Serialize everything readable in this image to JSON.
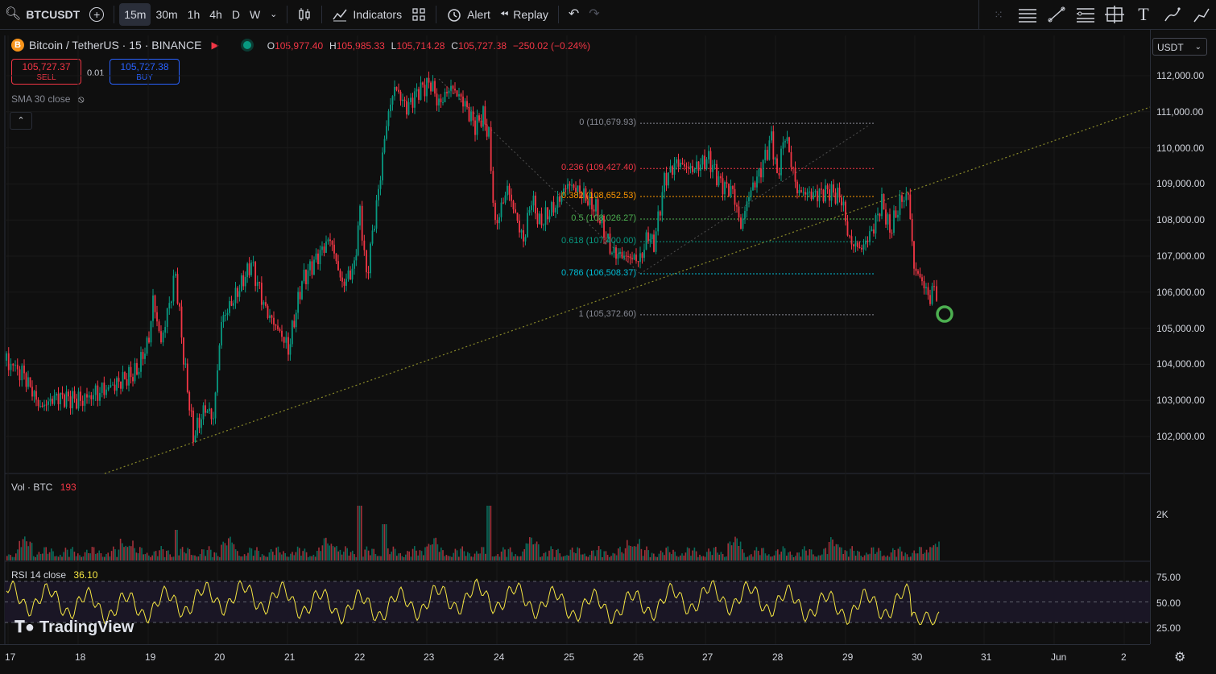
{
  "toolbar": {
    "symbol": "BTCUSDT",
    "intervals": [
      "15m",
      "30m",
      "1h",
      "4h",
      "D",
      "W"
    ],
    "active_interval": "15m",
    "indicators_label": "Indicators",
    "alert_label": "Alert",
    "replay_label": "Replay"
  },
  "legend": {
    "title": "Bitcoin / TetherUS · 15 · BINANCE",
    "o_label": "O",
    "o_value": "105,977.40",
    "h_label": "H",
    "h_value": "105,985.33",
    "l_label": "L",
    "l_value": "105,714.28",
    "c_label": "C",
    "c_value": "105,727.38",
    "change": "−250.02 (−0.24%)"
  },
  "trade": {
    "sell_price": "105,727.37",
    "sell_label": "SELL",
    "spread": "0.01",
    "buy_price": "105,727.38",
    "buy_label": "BUY"
  },
  "sma_label": "SMA 30 close",
  "currency": "USDT",
  "price_axis": [
    "112,000.00",
    "111,000.00",
    "110,000.00",
    "109,000.00",
    "108,000.00",
    "107,000.00",
    "106,000.00",
    "105,000.00",
    "104,000.00",
    "103,000.00",
    "102,000.00"
  ],
  "fib_levels": [
    {
      "label": "0 (110,679.93)",
      "color": "#868993"
    },
    {
      "label": "0.236 (109,427.40)",
      "color": "#f23645"
    },
    {
      "label": "0.382 (108,652.53)",
      "color": "#ff9800"
    },
    {
      "label": "0.5 (108,026.27)",
      "color": "#4caf50"
    },
    {
      "label": "0.618 (107,400.00)",
      "color": "#089981"
    },
    {
      "label": "0.786 (106,508.37)",
      "color": "#00bcd4"
    },
    {
      "label": "1 (105,372.60)",
      "color": "#868993"
    }
  ],
  "volume": {
    "label": "Vol · BTC",
    "value": "193",
    "axis": "2K"
  },
  "rsi": {
    "label": "RSI 14 close",
    "value": "36.10",
    "axis": [
      "75.00",
      "50.00",
      "25.00"
    ]
  },
  "watermark": "TradingView",
  "time_axis": [
    "17",
    "18",
    "19",
    "20",
    "21",
    "22",
    "23",
    "24",
    "25",
    "26",
    "27",
    "28",
    "29",
    "30",
    "31",
    "Jun",
    "2"
  ]
}
